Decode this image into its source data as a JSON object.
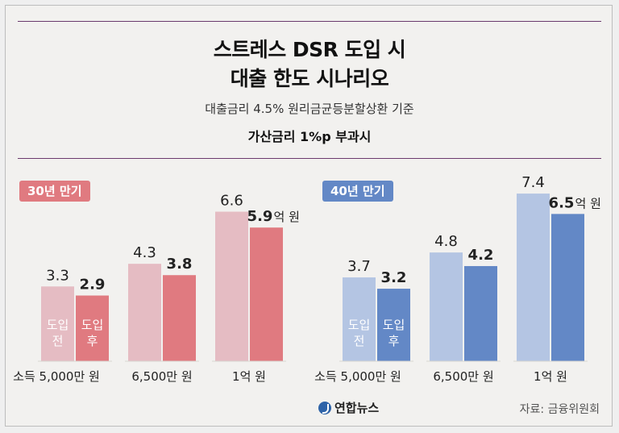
{
  "header": {
    "title_line1": "스트레스 DSR 도입 시",
    "title_line2": "대출 한도 시나리오",
    "subtitle": "대출금리 4.5% 원리금균등분할상환 기준",
    "subtitle2": "가산금리 1%p 부과시"
  },
  "footer": {
    "logo": "연합뉴스",
    "source": "자료: 금융위원회"
  },
  "colors": {
    "before_30": "#e5bcc3",
    "after_30": "#e07a80",
    "before_40": "#b4c5e3",
    "after_40": "#6388c6",
    "badge_30": "#e07a80",
    "badge_40": "#6388c6"
  },
  "chart_data": [
    {
      "type": "bar",
      "badge": "30년 만기",
      "categories": [
        "소득 5,000만 원",
        "6,500만 원",
        "1억 원"
      ],
      "series": [
        {
          "name": "도입 전",
          "values": [
            3.3,
            4.3,
            6.6
          ]
        },
        {
          "name": "도입 후",
          "values": [
            2.9,
            3.8,
            5.9
          ]
        }
      ],
      "value_labels": {
        "before": [
          "3.3",
          "4.3",
          "6.6"
        ],
        "after": [
          "2.9",
          "3.8",
          "5.9"
        ]
      },
      "unit": "억 원",
      "bar_labels": {
        "before": [
          "도입",
          "전"
        ],
        "after": [
          "도입",
          "후"
        ]
      }
    },
    {
      "type": "bar",
      "badge": "40년 만기",
      "categories": [
        "소득 5,000만 원",
        "6,500만 원",
        "1억 원"
      ],
      "series": [
        {
          "name": "도입 전",
          "values": [
            3.7,
            4.8,
            7.4
          ]
        },
        {
          "name": "도입 후",
          "values": [
            3.2,
            4.2,
            6.5
          ]
        }
      ],
      "value_labels": {
        "before": [
          "3.7",
          "4.8",
          "7.4"
        ],
        "after": [
          "3.2",
          "4.2",
          "6.5"
        ]
      },
      "unit": "억 원",
      "bar_labels": {
        "before": [
          "도입",
          "전"
        ],
        "after": [
          "도입",
          "후"
        ]
      }
    }
  ]
}
